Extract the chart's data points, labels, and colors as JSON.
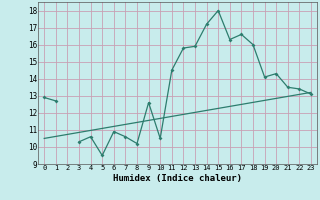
{
  "xlabel": "Humidex (Indice chaleur)",
  "x": [
    0,
    1,
    2,
    3,
    4,
    5,
    6,
    7,
    8,
    9,
    10,
    11,
    12,
    13,
    14,
    15,
    16,
    17,
    18,
    19,
    20,
    21,
    22,
    23
  ],
  "line1": [
    12.9,
    12.7,
    null,
    10.3,
    10.6,
    9.5,
    10.9,
    10.6,
    10.2,
    12.6,
    10.5,
    14.5,
    15.8,
    15.9,
    17.2,
    18.0,
    16.3,
    16.6,
    16.0,
    14.1,
    14.3,
    13.5,
    13.4,
    13.1
  ],
  "line2_x": [
    0,
    23
  ],
  "line2_y": [
    10.5,
    13.2
  ],
  "line_color": "#2d7d6e",
  "bg_color": "#c8ecec",
  "grid_color": "#c8a0b4",
  "ylim": [
    9,
    18.5
  ],
  "xlim": [
    -0.5,
    23.5
  ],
  "yticks": [
    9,
    10,
    11,
    12,
    13,
    14,
    15,
    16,
    17,
    18
  ],
  "xticks": [
    0,
    1,
    2,
    3,
    4,
    5,
    6,
    7,
    8,
    9,
    10,
    11,
    12,
    13,
    14,
    15,
    16,
    17,
    18,
    19,
    20,
    21,
    22,
    23
  ]
}
